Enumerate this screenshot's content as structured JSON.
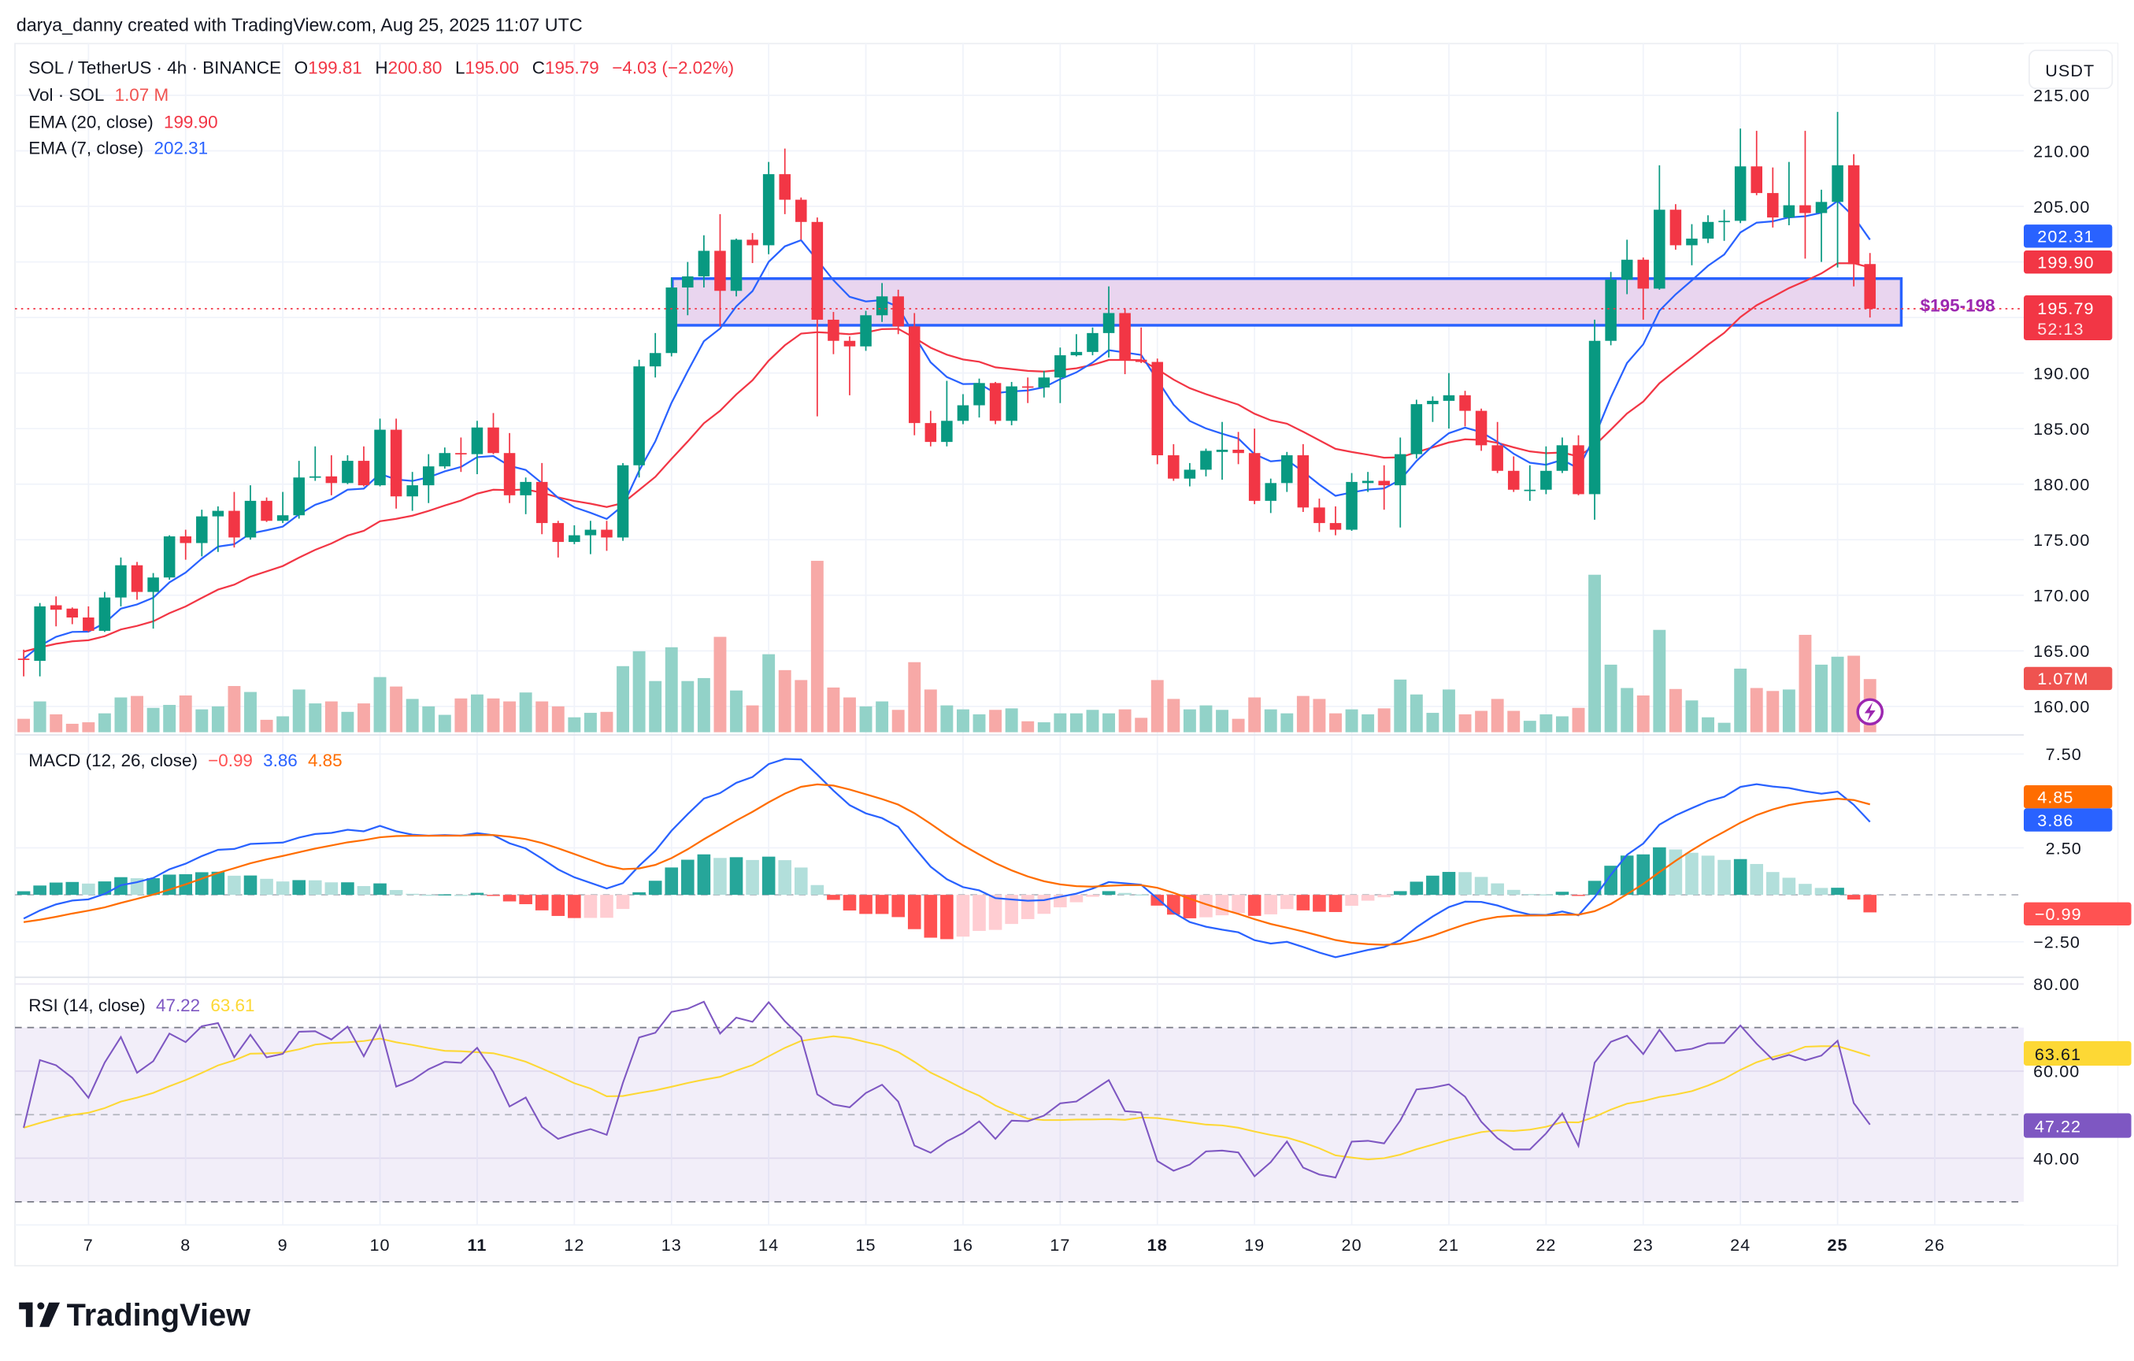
{
  "attribution": "darya_danny created with TradingView.com, Aug 25, 2025 11:07 UTC",
  "symbol": {
    "title": "SOL / TetherUS · 4h · BINANCE",
    "o_label": "O",
    "open": "199.81",
    "h_label": "H",
    "high": "200.80",
    "l_label": "L",
    "low": "195.00",
    "c_label": "C",
    "close": "195.79",
    "change": "−4.03 (−2.02%)"
  },
  "legend": {
    "vol_label": "Vol · SOL",
    "vol_value": "1.07 M",
    "ema20_label": "EMA (20, close)",
    "ema20_value": "199.90",
    "ema7_label": "EMA (7, close)",
    "ema7_value": "202.31"
  },
  "price_axis": {
    "currency": "USDT",
    "ticks": [
      {
        "value": 215,
        "label": "215.00"
      },
      {
        "value": 210,
        "label": "210.00"
      },
      {
        "value": 205,
        "label": "205.00"
      },
      {
        "value": 190,
        "label": "190.00"
      },
      {
        "value": 185,
        "label": "185.00"
      },
      {
        "value": 180,
        "label": "180.00"
      },
      {
        "value": 175,
        "label": "175.00"
      },
      {
        "value": 170,
        "label": "170.00"
      },
      {
        "value": 165,
        "label": "165.00"
      },
      {
        "value": 160,
        "label": "160.00"
      }
    ],
    "tags": {
      "ema7": "202.31",
      "ema20": "199.90",
      "last": "195.79",
      "countdown": "52:13",
      "volume": "1.07M"
    }
  },
  "zone": {
    "label": "$195-198",
    "low": 194.3,
    "high": 198.5
  },
  "macd": {
    "label": "MACD (12, 26, close)",
    "hist": "−0.99",
    "macd": "3.86",
    "signal": "4.85",
    "ticks": [
      {
        "value": 7.5,
        "label": "7.50"
      },
      {
        "value": 2.5,
        "label": "2.50"
      },
      {
        "value": -2.5,
        "label": "−2.50"
      }
    ]
  },
  "rsi": {
    "label": "RSI (14, close)",
    "value": "47.22",
    "ma": "63.61",
    "ticks": [
      {
        "value": 80,
        "label": "80.00"
      },
      {
        "value": 60,
        "label": "60.00"
      },
      {
        "value": 40,
        "label": "40.00"
      }
    ],
    "band": [
      30,
      70
    ]
  },
  "x_axis": {
    "ticks": [
      {
        "label": "7"
      },
      {
        "label": "8"
      },
      {
        "label": "9"
      },
      {
        "label": "10"
      },
      {
        "label": "11",
        "emphasized": true
      },
      {
        "label": "12"
      },
      {
        "label": "13"
      },
      {
        "label": "14"
      },
      {
        "label": "15"
      },
      {
        "label": "16"
      },
      {
        "label": "17"
      },
      {
        "label": "18",
        "emphasized": true
      },
      {
        "label": "19"
      },
      {
        "label": "20"
      },
      {
        "label": "21"
      },
      {
        "label": "22"
      },
      {
        "label": "23"
      },
      {
        "label": "24"
      },
      {
        "label": "25",
        "emphasized": true
      },
      {
        "label": "26"
      }
    ]
  },
  "logo": "TradingView",
  "icons": {
    "alert": "lightning-icon",
    "logo": "tradingview-logo-icon"
  },
  "colors": {
    "up": "#089981",
    "down": "#f23645",
    "vol_up": "#92d2c8",
    "vol_down": "#f7a9a7",
    "ema7": "#2962ff",
    "ema20": "#f23645",
    "macd": "#2962ff",
    "signal": "#ff6d00",
    "hist_up_strong": "#26a69a",
    "hist_up_weak": "#b2dfdb",
    "hist_down_strong": "#ff5252",
    "hist_down_weak": "#ffcdd2",
    "rsi": "#7e57c2",
    "rsi_ma": "#fdd835",
    "zone_border": "#2962ff",
    "zone_fill": "#e9d5ef",
    "zone_label": "#9c27b0"
  },
  "chart_data": {
    "type": "candlestick",
    "columns": [
      "open",
      "high",
      "low",
      "close",
      "volume_millions"
    ],
    "candles": [
      [
        164.3,
        165.1,
        162.7,
        164.2,
        0.27
      ],
      [
        164.1,
        169.3,
        162.7,
        169.0,
        0.62
      ],
      [
        169.1,
        169.9,
        167.2,
        168.7,
        0.36
      ],
      [
        168.8,
        168.9,
        167.4,
        168.0,
        0.17
      ],
      [
        168.0,
        169.0,
        166.7,
        166.8,
        0.2
      ],
      [
        166.8,
        170.3,
        166.7,
        169.8,
        0.38
      ],
      [
        169.8,
        173.4,
        169.0,
        172.7,
        0.7
      ],
      [
        172.7,
        173.0,
        169.6,
        170.3,
        0.73
      ],
      [
        170.3,
        172.0,
        167.0,
        171.6,
        0.49
      ],
      [
        171.6,
        175.4,
        171.4,
        175.3,
        0.55
      ],
      [
        175.3,
        175.9,
        173.2,
        174.7,
        0.74
      ],
      [
        174.7,
        177.7,
        173.5,
        177.1,
        0.46
      ],
      [
        177.1,
        178.0,
        173.9,
        177.6,
        0.52
      ],
      [
        177.6,
        179.3,
        174.3,
        175.2,
        0.93
      ],
      [
        175.2,
        179.9,
        175.0,
        178.5,
        0.81
      ],
      [
        178.5,
        178.8,
        176.6,
        176.7,
        0.25
      ],
      [
        176.7,
        179.3,
        176.5,
        177.2,
        0.32
      ],
      [
        177.2,
        182.1,
        176.9,
        180.6,
        0.86
      ],
      [
        180.6,
        183.4,
        180.3,
        180.7,
        0.58
      ],
      [
        180.7,
        182.6,
        179.0,
        180.1,
        0.62
      ],
      [
        180.1,
        182.6,
        180.0,
        182.1,
        0.41
      ],
      [
        182.1,
        183.4,
        179.8,
        179.9,
        0.58
      ],
      [
        179.9,
        185.9,
        179.8,
        184.9,
        1.11
      ],
      [
        184.9,
        185.9,
        177.8,
        178.9,
        0.92
      ],
      [
        178.9,
        181.1,
        177.6,
        179.9,
        0.67
      ],
      [
        179.9,
        182.7,
        178.3,
        181.6,
        0.52
      ],
      [
        181.6,
        183.3,
        181.4,
        182.8,
        0.35
      ],
      [
        182.8,
        184.2,
        181.1,
        182.7,
        0.68
      ],
      [
        182.7,
        185.7,
        180.9,
        185.1,
        0.76
      ],
      [
        185.1,
        186.4,
        182.7,
        182.8,
        0.68
      ],
      [
        182.8,
        184.6,
        178.3,
        179.0,
        0.62
      ],
      [
        179.0,
        180.6,
        177.3,
        180.2,
        0.8
      ],
      [
        180.2,
        181.9,
        175.5,
        176.5,
        0.62
      ],
      [
        176.5,
        176.7,
        173.4,
        174.8,
        0.52
      ],
      [
        174.8,
        176.3,
        174.6,
        175.4,
        0.3
      ],
      [
        175.4,
        176.7,
        173.7,
        175.9,
        0.39
      ],
      [
        175.9,
        176.7,
        174.0,
        175.2,
        0.41
      ],
      [
        175.2,
        181.9,
        174.9,
        181.7,
        1.33
      ],
      [
        181.7,
        191.2,
        180.6,
        190.6,
        1.63
      ],
      [
        190.6,
        193.6,
        189.6,
        191.8,
        1.03
      ],
      [
        191.8,
        198.6,
        191.5,
        197.7,
        1.71
      ],
      [
        197.7,
        200.0,
        195.2,
        198.7,
        1.03
      ],
      [
        198.7,
        202.4,
        197.7,
        201.0,
        1.09
      ],
      [
        201.0,
        204.3,
        194.2,
        197.4,
        1.92
      ],
      [
        197.4,
        202.1,
        196.9,
        202.0,
        0.84
      ],
      [
        202.0,
        202.6,
        199.9,
        201.5,
        0.54
      ],
      [
        201.5,
        209.0,
        200.7,
        207.9,
        1.57
      ],
      [
        207.9,
        210.2,
        204.3,
        205.6,
        1.25
      ],
      [
        205.6,
        205.8,
        202.0,
        203.6,
        1.05
      ],
      [
        203.6,
        204.0,
        186.1,
        194.8,
        3.45
      ],
      [
        194.8,
        195.5,
        191.7,
        192.9,
        0.9
      ],
      [
        192.9,
        193.3,
        188.0,
        192.4,
        0.7
      ],
      [
        192.4,
        195.6,
        192.0,
        195.2,
        0.52
      ],
      [
        195.2,
        198.1,
        194.6,
        196.9,
        0.62
      ],
      [
        196.9,
        197.5,
        193.5,
        194.2,
        0.45
      ],
      [
        194.2,
        195.4,
        184.4,
        185.5,
        1.41
      ],
      [
        185.5,
        186.6,
        183.4,
        183.8,
        0.86
      ],
      [
        183.8,
        189.3,
        183.4,
        185.7,
        0.54
      ],
      [
        185.7,
        188.1,
        185.4,
        187.1,
        0.46
      ],
      [
        187.1,
        189.5,
        186.0,
        189.1,
        0.36
      ],
      [
        189.1,
        189.2,
        185.4,
        185.7,
        0.45
      ],
      [
        185.7,
        189.2,
        185.3,
        188.8,
        0.48
      ],
      [
        188.8,
        189.6,
        187.3,
        188.7,
        0.22
      ],
      [
        188.7,
        190.2,
        187.8,
        189.6,
        0.2
      ],
      [
        189.6,
        192.3,
        187.3,
        191.6,
        0.38
      ],
      [
        191.6,
        193.5,
        191.5,
        191.9,
        0.38
      ],
      [
        191.9,
        194.1,
        191.6,
        193.6,
        0.45
      ],
      [
        193.6,
        197.8,
        191.4,
        195.4,
        0.38
      ],
      [
        195.4,
        195.8,
        189.9,
        191.2,
        0.46
      ],
      [
        191.2,
        194.1,
        190.9,
        191.0,
        0.29
      ],
      [
        191.0,
        191.3,
        181.8,
        182.6,
        1.05
      ],
      [
        182.6,
        183.6,
        180.3,
        180.5,
        0.67
      ],
      [
        180.5,
        181.9,
        179.8,
        181.3,
        0.46
      ],
      [
        181.3,
        183.2,
        180.7,
        183.0,
        0.54
      ],
      [
        182.9,
        185.6,
        180.4,
        183.1,
        0.45
      ],
      [
        183.1,
        184.7,
        181.8,
        182.8,
        0.27
      ],
      [
        182.8,
        185.0,
        178.2,
        178.5,
        0.7
      ],
      [
        178.5,
        180.5,
        177.4,
        180.1,
        0.46
      ],
      [
        180.1,
        182.9,
        179.3,
        182.6,
        0.38
      ],
      [
        182.6,
        183.6,
        177.5,
        177.9,
        0.73
      ],
      [
        177.9,
        178.7,
        175.7,
        176.5,
        0.67
      ],
      [
        176.5,
        178.0,
        175.4,
        175.9,
        0.38
      ],
      [
        175.9,
        181.0,
        175.8,
        180.2,
        0.46
      ],
      [
        180.1,
        181.1,
        179.3,
        180.3,
        0.36
      ],
      [
        180.3,
        181.7,
        177.7,
        179.9,
        0.48
      ],
      [
        179.9,
        184.2,
        176.1,
        182.7,
        1.06
      ],
      [
        182.7,
        187.6,
        182.3,
        187.2,
        0.76
      ],
      [
        187.2,
        187.9,
        185.6,
        187.5,
        0.39
      ],
      [
        187.5,
        190.0,
        185.0,
        188.0,
        0.86
      ],
      [
        188.0,
        188.4,
        185.2,
        186.6,
        0.36
      ],
      [
        186.6,
        186.8,
        183.0,
        183.5,
        0.43
      ],
      [
        183.5,
        185.6,
        181.0,
        181.2,
        0.67
      ],
      [
        181.2,
        182.5,
        179.3,
        179.5,
        0.43
      ],
      [
        179.4,
        181.7,
        178.5,
        179.5,
        0.23
      ],
      [
        179.5,
        183.4,
        179.1,
        181.2,
        0.36
      ],
      [
        181.2,
        184.2,
        181.0,
        183.5,
        0.32
      ],
      [
        183.5,
        184.4,
        179.0,
        179.1,
        0.49
      ],
      [
        179.1,
        194.8,
        176.8,
        192.9,
        3.17
      ],
      [
        192.9,
        199.1,
        192.5,
        198.4,
        1.36
      ],
      [
        198.4,
        202.0,
        197.1,
        200.2,
        0.89
      ],
      [
        200.2,
        200.4,
        194.8,
        197.6,
        0.74
      ],
      [
        197.6,
        208.7,
        197.5,
        204.7,
        2.06
      ],
      [
        204.7,
        205.2,
        201.1,
        201.5,
        0.87
      ],
      [
        201.5,
        203.4,
        199.7,
        202.1,
        0.64
      ],
      [
        202.1,
        204.2,
        201.7,
        203.6,
        0.3
      ],
      [
        203.6,
        204.7,
        201.9,
        203.7,
        0.19
      ],
      [
        203.7,
        212.0,
        203.5,
        208.6,
        1.28
      ],
      [
        208.6,
        211.8,
        206.0,
        206.2,
        0.89
      ],
      [
        206.2,
        208.5,
        203.1,
        204.0,
        0.83
      ],
      [
        204.0,
        209.0,
        203.3,
        205.1,
        0.86
      ],
      [
        205.1,
        211.8,
        200.3,
        204.4,
        1.96
      ],
      [
        204.4,
        206.5,
        200.0,
        205.4,
        1.36
      ],
      [
        205.4,
        213.5,
        199.5,
        208.7,
        1.52
      ],
      [
        208.7,
        209.7,
        197.8,
        199.8,
        1.54
      ],
      [
        199.81,
        200.8,
        195.0,
        195.79,
        1.07
      ]
    ]
  }
}
